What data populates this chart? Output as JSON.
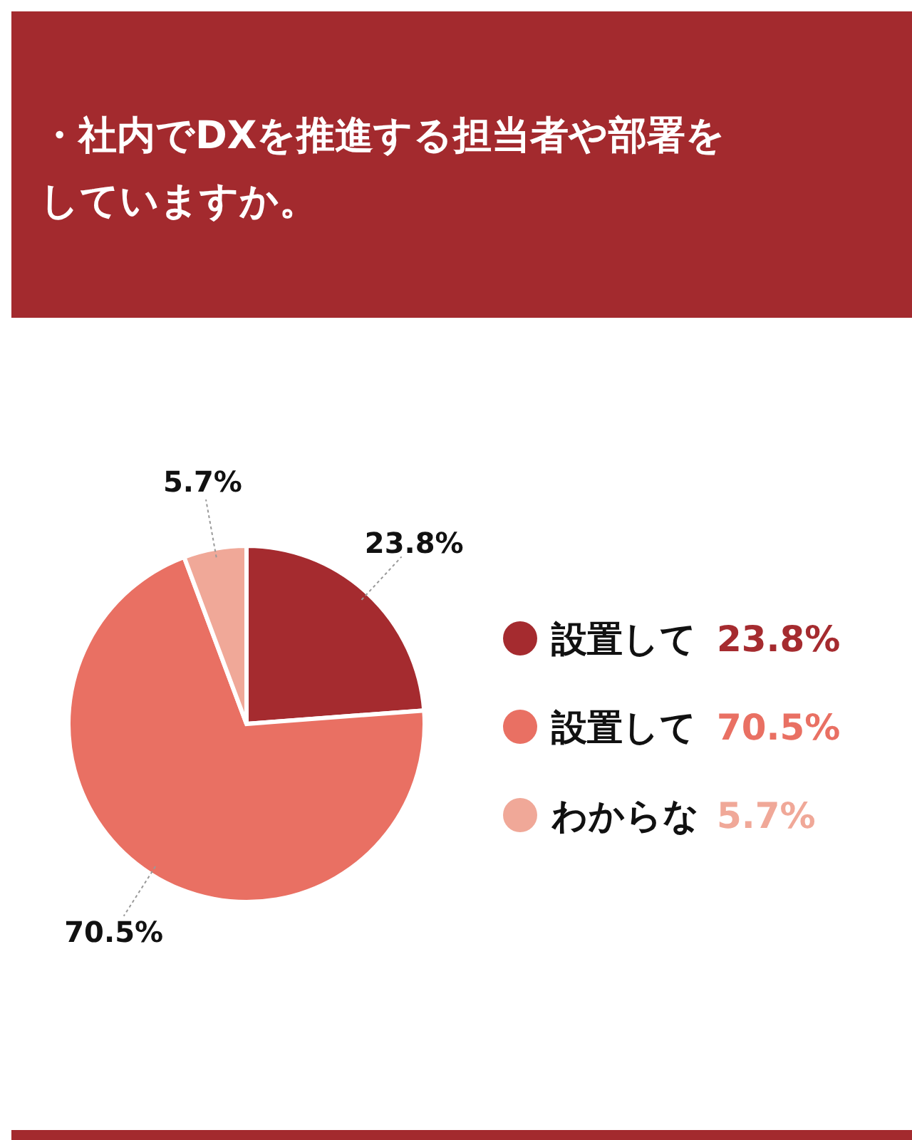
{
  "chart_data": {
    "type": "pie",
    "title": "・社内でDXを推進する担当者や部署をしていますか。",
    "categories": [
      "設置して",
      "設置して",
      "わからな"
    ],
    "values": [
      23.8,
      70.5,
      5.7
    ],
    "colors": [
      "#a52b2f",
      "#e97063",
      "#f0a898"
    ],
    "value_labels": [
      "23.8%",
      "70.5%",
      "5.7%"
    ],
    "legend": "right"
  }
}
